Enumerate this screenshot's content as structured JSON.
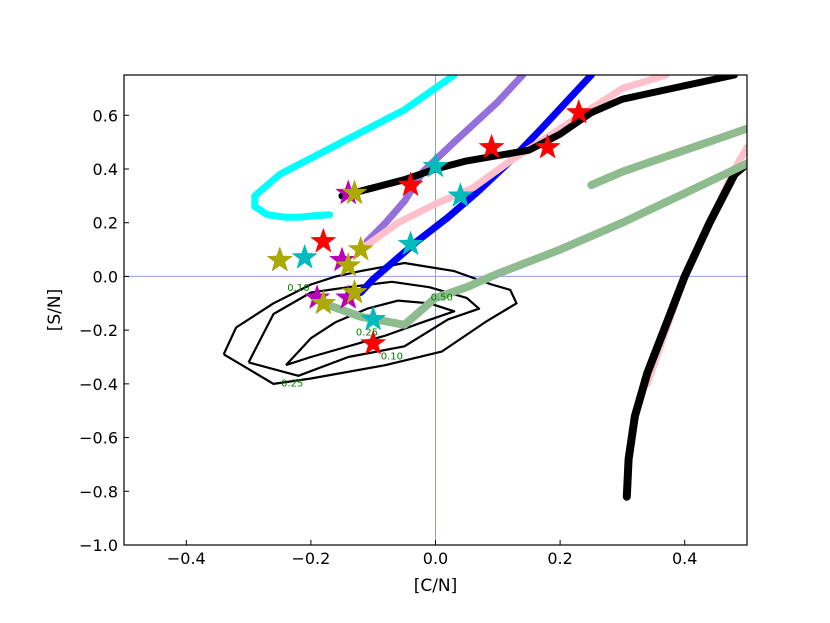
{
  "chart_data": {
    "type": "line",
    "xlabel": "[C/N]",
    "ylabel": "[S/N]",
    "xlim": [
      -0.5,
      0.5
    ],
    "ylim": [
      -1.0,
      0.75
    ],
    "xticks": [
      -0.4,
      -0.2,
      0.0,
      0.2,
      0.4
    ],
    "yticks": [
      -1.0,
      -0.8,
      -0.6,
      -0.4,
      -0.2,
      0.0,
      0.2,
      0.4,
      0.6
    ],
    "xtick_labels": [
      "−0.4",
      "−0.2",
      "0.0",
      "0.2",
      "0.4"
    ],
    "ytick_labels": [
      "−1.0",
      "−0.8",
      "−0.6",
      "−0.4",
      "−0.2",
      "0.0",
      "0.2",
      "0.4",
      "0.6"
    ],
    "grid": false,
    "reference_lines": {
      "x": 0.0,
      "y": 0.0,
      "color": "#9999ee"
    },
    "series": [
      {
        "color": "#00ffff",
        "width": 7,
        "x": [
          -0.17,
          -0.2,
          -0.22,
          -0.24,
          -0.27,
          -0.29,
          -0.29,
          -0.25,
          -0.15,
          -0.05,
          0.03
        ],
        "y": [
          0.23,
          0.225,
          0.22,
          0.22,
          0.23,
          0.26,
          0.3,
          0.38,
          0.5,
          0.62,
          0.75
        ]
      },
      {
        "color": "#9370db",
        "width": 7,
        "x": [
          -0.11,
          -0.08,
          -0.05,
          -0.02,
          0.03,
          0.1,
          0.14
        ],
        "y": [
          0.13,
          0.2,
          0.28,
          0.39,
          0.5,
          0.65,
          0.75
        ]
      },
      {
        "color": "#0000ff",
        "width": 7,
        "x": [
          -0.12,
          -0.1,
          -0.07,
          -0.03,
          0.02,
          0.07,
          0.12,
          0.17,
          0.25
        ],
        "y": [
          -0.06,
          -0.01,
          0.05,
          0.13,
          0.22,
          0.32,
          0.43,
          0.55,
          0.75
        ]
      },
      {
        "color": "#ffc0cb",
        "width": 7,
        "x": [
          -0.12,
          -0.06,
          0.0,
          0.06,
          0.12,
          0.18,
          0.24,
          0.3,
          0.37
        ],
        "y": [
          0.1,
          0.2,
          0.27,
          0.33,
          0.43,
          0.52,
          0.61,
          0.7,
          0.75
        ]
      },
      {
        "color": "#ffc0cb",
        "width": 7,
        "x": [
          0.34,
          0.37,
          0.4,
          0.44,
          0.48,
          0.5
        ],
        "y": [
          -0.4,
          -0.2,
          0.0,
          0.2,
          0.4,
          0.48
        ]
      },
      {
        "color": "#000000",
        "width": 7,
        "x": [
          -0.15,
          -0.1,
          -0.05,
          0.0,
          0.05,
          0.1,
          0.15,
          0.2,
          0.25,
          0.3,
          0.4,
          0.48
        ],
        "y": [
          0.3,
          0.33,
          0.36,
          0.4,
          0.43,
          0.45,
          0.47,
          0.53,
          0.61,
          0.66,
          0.71,
          0.75
        ]
      },
      {
        "color": "#000000",
        "width": 8,
        "x": [
          0.307,
          0.31,
          0.32,
          0.34,
          0.37,
          0.4,
          0.44,
          0.48,
          0.5
        ],
        "y": [
          -0.82,
          -0.68,
          -0.52,
          -0.36,
          -0.18,
          0.0,
          0.2,
          0.38,
          0.42
        ]
      },
      {
        "color": "#8fbc8f",
        "width": 8,
        "x": [
          -0.18,
          -0.12,
          -0.05,
          0.0,
          0.05,
          0.1,
          0.2,
          0.3,
          0.4,
          0.5
        ],
        "y": [
          -0.1,
          -0.15,
          -0.18,
          -0.08,
          -0.04,
          0.01,
          0.1,
          0.2,
          0.31,
          0.42
        ]
      },
      {
        "color": "#8fbc8f",
        "width": 8,
        "x": [
          0.25,
          0.3,
          0.35,
          0.4,
          0.45,
          0.5
        ],
        "y": [
          0.34,
          0.39,
          0.43,
          0.47,
          0.51,
          0.55
        ]
      }
    ],
    "contours": [
      {
        "level_label": "0.10",
        "label_x": -0.22,
        "label_y": -0.055,
        "label2": "0.10",
        "label2_x": -0.07,
        "label2_y": -0.31,
        "x": [
          -0.34,
          -0.32,
          -0.26,
          -0.2,
          -0.16,
          -0.12,
          -0.05,
          0.03,
          0.09,
          0.12,
          0.13,
          0.08,
          0.01,
          -0.08,
          -0.2,
          -0.26,
          -0.34
        ],
        "y": [
          -0.29,
          -0.19,
          -0.1,
          -0.03,
          0.0,
          0.02,
          0.05,
          0.02,
          -0.03,
          -0.05,
          -0.1,
          -0.17,
          -0.28,
          -0.33,
          -0.38,
          -0.4,
          -0.29
        ]
      },
      {
        "level_label": "0.25",
        "label_x": -0.23,
        "label_y": -0.41,
        "label2": "0.25",
        "label2_x": -0.11,
        "label2_y": -0.22,
        "x": [
          -0.3,
          -0.26,
          -0.2,
          -0.14,
          -0.07,
          -0.01,
          0.05,
          0.07,
          0.02,
          -0.05,
          -0.14,
          -0.22,
          -0.3
        ],
        "y": [
          -0.32,
          -0.14,
          -0.06,
          -0.04,
          -0.02,
          -0.04,
          -0.08,
          -0.12,
          -0.16,
          -0.26,
          -0.3,
          -0.37,
          -0.32
        ]
      },
      {
        "level_label": "0.50",
        "label_x": 0.01,
        "label_y": -0.09,
        "x": [
          -0.24,
          -0.2,
          -0.16,
          -0.11,
          -0.06,
          -0.01,
          0.03,
          -0.02,
          -0.08,
          -0.14,
          -0.2,
          -0.24
        ],
        "y": [
          -0.33,
          -0.23,
          -0.17,
          -0.12,
          -0.09,
          -0.1,
          -0.13,
          -0.17,
          -0.22,
          -0.26,
          -0.3,
          -0.33
        ]
      }
    ],
    "markers": [
      {
        "color": "#ff0000",
        "x": -0.04,
        "y": 0.34
      },
      {
        "color": "#ff0000",
        "x": 0.09,
        "y": 0.48
      },
      {
        "color": "#ff0000",
        "x": 0.18,
        "y": 0.48
      },
      {
        "color": "#ff0000",
        "x": 0.23,
        "y": 0.61
      },
      {
        "color": "#ff0000",
        "x": -0.18,
        "y": 0.13
      },
      {
        "color": "#ff0000",
        "x": -0.1,
        "y": -0.25
      },
      {
        "color": "#00bbbb",
        "x": 0.0,
        "y": 0.41
      },
      {
        "color": "#00bbbb",
        "x": 0.04,
        "y": 0.3
      },
      {
        "color": "#00bbbb",
        "x": -0.04,
        "y": 0.12
      },
      {
        "color": "#00bbbb",
        "x": -0.21,
        "y": 0.07
      },
      {
        "color": "#00bbbb",
        "x": -0.1,
        "y": -0.16
      },
      {
        "color": "#bb00bb",
        "x": -0.14,
        "y": 0.31
      },
      {
        "color": "#bb00bb",
        "x": -0.25,
        "y": 0.06
      },
      {
        "color": "#bb00bb",
        "x": -0.15,
        "y": 0.06
      },
      {
        "color": "#bb00bb",
        "x": -0.19,
        "y": -0.08
      },
      {
        "color": "#bb00bb",
        "x": -0.14,
        "y": -0.08
      },
      {
        "color": "#aaaa00",
        "x": -0.13,
        "y": 0.31
      },
      {
        "color": "#aaaa00",
        "x": -0.25,
        "y": 0.06
      },
      {
        "color": "#aaaa00",
        "x": -0.12,
        "y": 0.1
      },
      {
        "color": "#aaaa00",
        "x": -0.14,
        "y": 0.04
      },
      {
        "color": "#aaaa00",
        "x": -0.13,
        "y": -0.06
      },
      {
        "color": "#aaaa00",
        "x": -0.18,
        "y": -0.1
      }
    ]
  }
}
